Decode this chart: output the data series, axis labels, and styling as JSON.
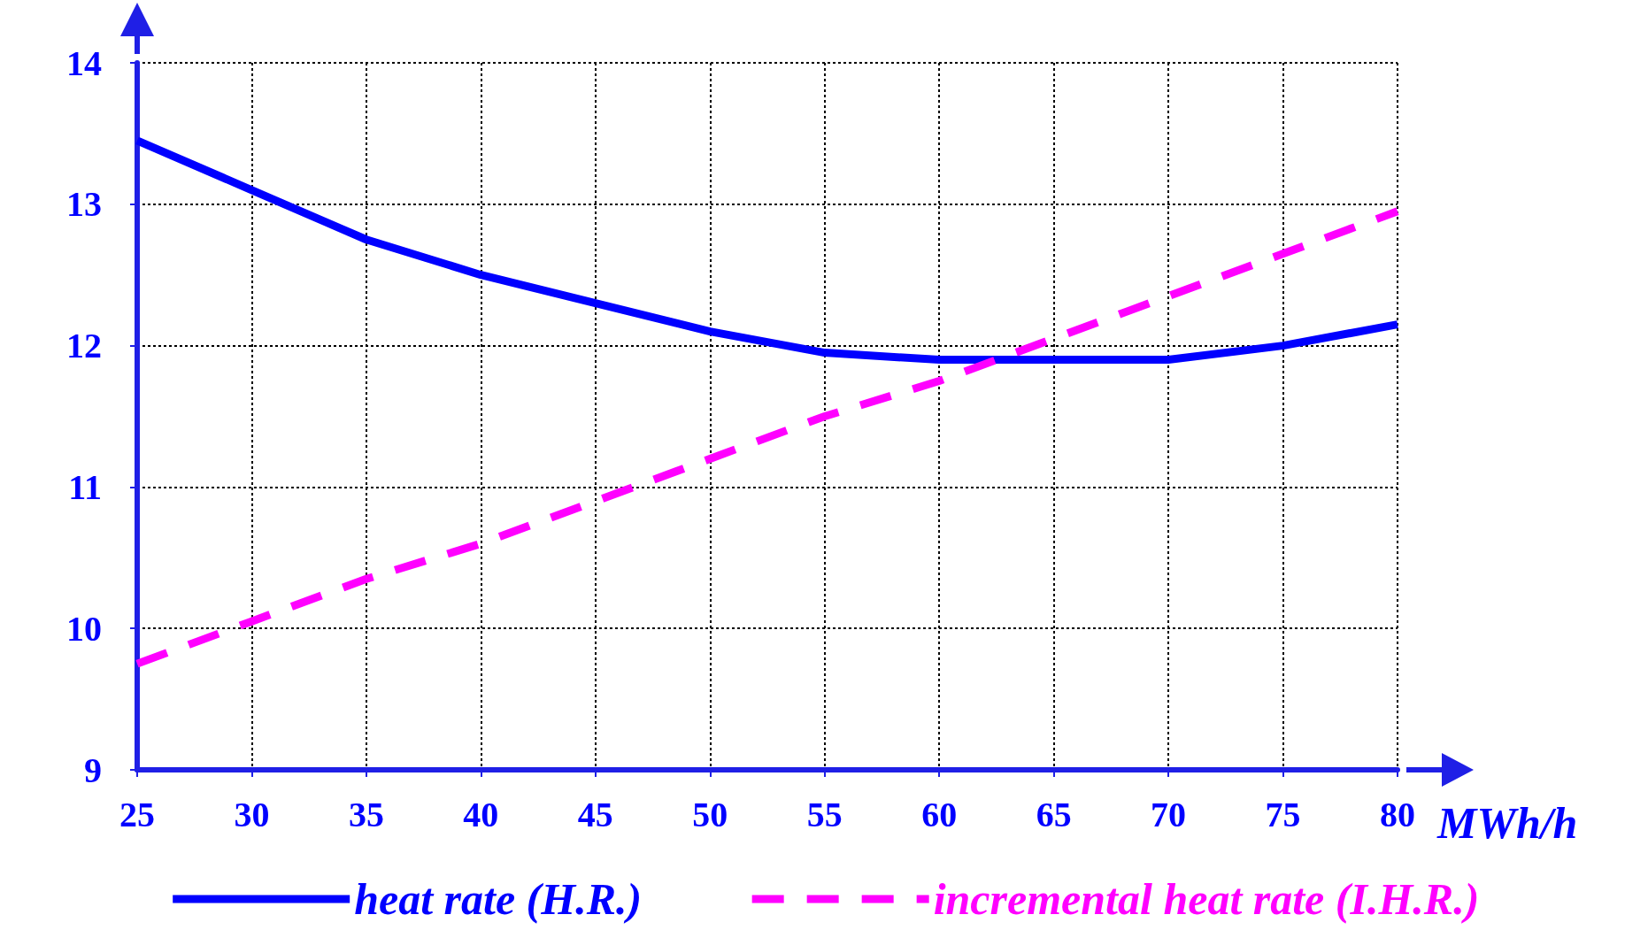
{
  "chart_data": {
    "type": "line",
    "xlabel": "MWh/h",
    "x": [
      25,
      30,
      35,
      40,
      45,
      50,
      55,
      60,
      65,
      70,
      75,
      80
    ],
    "series": [
      {
        "name": "heat rate (H.R.)",
        "color": "#0000ff",
        "line_style": "solid",
        "values": [
          13.45,
          13.1,
          12.75,
          12.5,
          12.3,
          12.1,
          11.95,
          11.9,
          11.9,
          11.9,
          12.0,
          12.15
        ]
      },
      {
        "name": "incremental heat rate (I.H.R.)",
        "color": "#ff00ff",
        "line_style": "dashed",
        "values": [
          9.75,
          10.05,
          10.35,
          10.6,
          10.9,
          11.2,
          11.5,
          11.75,
          12.05,
          12.35,
          12.65,
          12.95
        ]
      }
    ],
    "xlim": [
      25,
      80
    ],
    "xticks": [
      25,
      30,
      35,
      40,
      45,
      50,
      55,
      60,
      65,
      70,
      75,
      80
    ],
    "ylim": [
      9,
      14
    ],
    "yticks": [
      9,
      10,
      11,
      12,
      13,
      14
    ],
    "grid": true,
    "legend": "bottom",
    "marker": "none"
  }
}
